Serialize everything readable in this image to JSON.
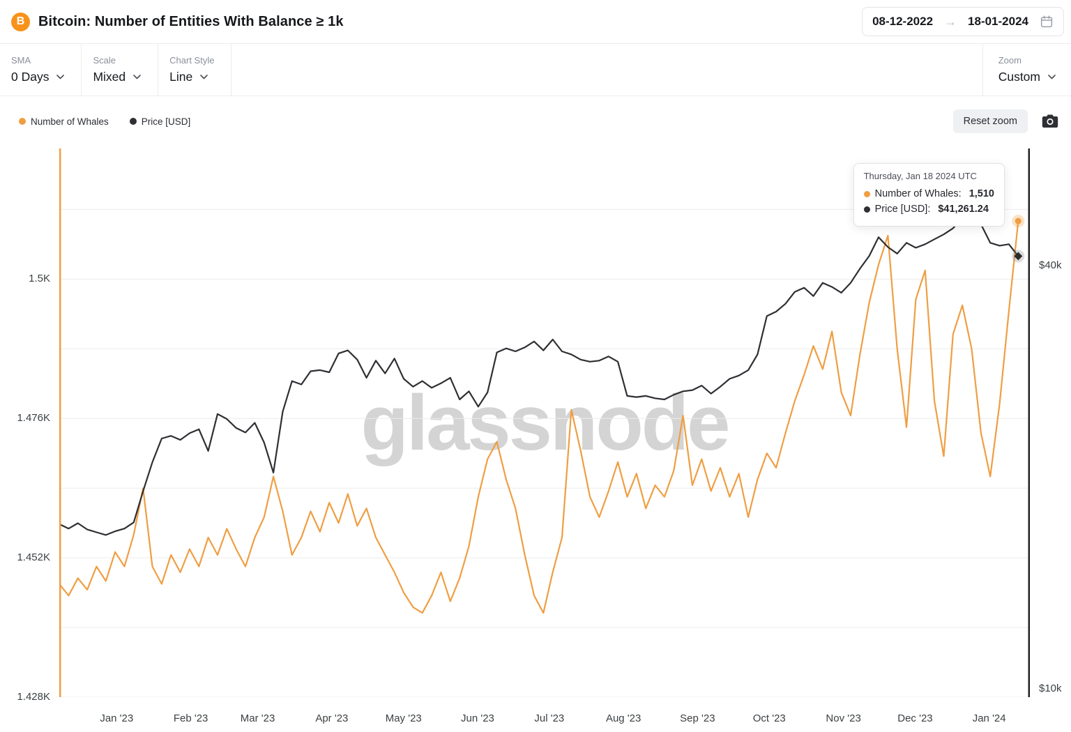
{
  "header": {
    "title": "Bitcoin: Number of Entities With Balance ≥ 1k",
    "date_range": {
      "start": "08-12-2022",
      "end": "18-01-2024"
    }
  },
  "toolbar": {
    "sma": {
      "label": "SMA",
      "value": "0 Days"
    },
    "scale": {
      "label": "Scale",
      "value": "Mixed"
    },
    "chart_style": {
      "label": "Chart Style",
      "value": "Line"
    },
    "zoom": {
      "label": "Zoom",
      "value": "Custom"
    }
  },
  "legend": [
    {
      "label": "Number of Whales",
      "color": "#ef9e42"
    },
    {
      "label": "Price [USD]",
      "color": "#2e2f33"
    }
  ],
  "actions": {
    "reset_zoom": "Reset zoom"
  },
  "tooltip": {
    "date": "Thursday, Jan 18 2024 UTC",
    "rows": [
      {
        "label": "Number of Whales:",
        "value": "1,510",
        "color": "#ef9e42"
      },
      {
        "label": "Price [USD]:",
        "value": "$41,261.24",
        "color": "#2e2f33"
      }
    ]
  },
  "watermark": "glassnode",
  "chart_data": {
    "type": "line",
    "title": "Bitcoin: Number of Entities With Balance ≥ 1k",
    "x_range": [
      "08-12-2022",
      "18-01-2024"
    ],
    "x_span": 0.988,
    "grid": true,
    "left_axis": {
      "scale": "linear",
      "unit": "K entities",
      "min": 1.428,
      "max": 1.5225,
      "grid_values": [
        1.428,
        1.44,
        1.452,
        1.464,
        1.476,
        1.488,
        1.5,
        1.512
      ],
      "ticks": [
        {
          "label": "1.5K",
          "value": 1.5
        },
        {
          "label": "1.476K",
          "value": 1.476
        },
        {
          "label": "1.452K",
          "value": 1.452
        },
        {
          "label": "1.428K",
          "value": 1.428
        }
      ]
    },
    "right_axis": {
      "scale": "log",
      "unit": "USD (thousands)",
      "min": 9.73,
      "max": 58.7,
      "ticks": [
        {
          "label": "$40k",
          "value": 40
        },
        {
          "label": "$10k",
          "value": 10
        }
      ]
    },
    "x_ticks": [
      {
        "label": "Jan '23",
        "f": 0.0591
      },
      {
        "label": "Feb '23",
        "f": 0.1355
      },
      {
        "label": "Mar '23",
        "f": 0.2044
      },
      {
        "label": "Apr '23",
        "f": 0.2808
      },
      {
        "label": "May '23",
        "f": 0.3547
      },
      {
        "label": "Jun '23",
        "f": 0.431
      },
      {
        "label": "Jul '23",
        "f": 0.5049
      },
      {
        "label": "Aug '23",
        "f": 0.5813
      },
      {
        "label": "Sep '23",
        "f": 0.6576
      },
      {
        "label": "Oct '23",
        "f": 0.7315
      },
      {
        "label": "Nov '23",
        "f": 0.8079
      },
      {
        "label": "Dec '23",
        "f": 0.8818
      },
      {
        "label": "Jan '24",
        "f": 0.9581
      }
    ],
    "series": [
      {
        "name": "Number of Whales",
        "axis": "left",
        "color": "#ef9e42",
        "marker": "circle",
        "last_value_label": "1,510",
        "values": [
          1.4475,
          1.4455,
          1.4485,
          1.4465,
          1.4505,
          1.448,
          1.453,
          1.4505,
          1.456,
          1.464,
          1.4505,
          1.4475,
          1.4525,
          1.4495,
          1.4535,
          1.4505,
          1.4555,
          1.4525,
          1.457,
          1.4535,
          1.4505,
          1.4555,
          1.459,
          1.466,
          1.46,
          1.4525,
          1.4555,
          1.46,
          1.4565,
          1.4615,
          1.458,
          1.463,
          1.4575,
          1.4605,
          1.4555,
          1.4525,
          1.4495,
          1.446,
          1.4435,
          1.4425,
          1.4455,
          1.4495,
          1.4445,
          1.4485,
          1.454,
          1.4625,
          1.469,
          1.472,
          1.4655,
          1.4605,
          1.4525,
          1.4455,
          1.4425,
          1.4495,
          1.4555,
          1.4775,
          1.4705,
          1.4625,
          1.459,
          1.4635,
          1.4685,
          1.4625,
          1.4665,
          1.4605,
          1.4645,
          1.4625,
          1.467,
          1.4765,
          1.4645,
          1.469,
          1.4635,
          1.4675,
          1.4625,
          1.4665,
          1.459,
          1.4655,
          1.47,
          1.4675,
          1.4735,
          1.479,
          1.4835,
          1.4885,
          1.4845,
          1.491,
          1.4805,
          1.4765,
          1.487,
          1.496,
          1.5025,
          1.5075,
          1.488,
          1.4745,
          1.4965,
          1.5015,
          1.479,
          1.4695,
          1.4905,
          1.4955,
          1.488,
          1.4735,
          1.466,
          1.4785,
          1.4945,
          1.51
        ]
      },
      {
        "name": "Price [USD]",
        "axis": "right",
        "color": "#2e2f33",
        "marker": "diamond",
        "last_value_label": "$41,261.24",
        "values": [
          17.15,
          16.9,
          17.2,
          16.85,
          16.7,
          16.55,
          16.75,
          16.9,
          17.25,
          19.1,
          21.0,
          22.7,
          22.9,
          22.6,
          23.1,
          23.4,
          21.8,
          24.6,
          24.2,
          23.5,
          23.15,
          23.9,
          22.4,
          20.3,
          24.8,
          27.4,
          27.1,
          28.3,
          28.4,
          28.2,
          30.0,
          30.3,
          29.4,
          27.7,
          29.3,
          28.1,
          29.5,
          27.6,
          26.9,
          27.4,
          26.8,
          27.2,
          27.7,
          25.8,
          26.5,
          25.2,
          26.4,
          30.1,
          30.5,
          30.2,
          30.6,
          31.2,
          30.3,
          31.4,
          30.2,
          29.9,
          29.4,
          29.2,
          29.3,
          29.7,
          29.2,
          26.1,
          26.0,
          26.1,
          25.9,
          25.8,
          26.2,
          26.5,
          26.6,
          27.0,
          26.3,
          26.9,
          27.6,
          27.9,
          28.4,
          29.9,
          33.9,
          34.4,
          35.3,
          36.7,
          37.2,
          36.2,
          37.8,
          37.3,
          36.6,
          37.8,
          39.6,
          41.3,
          43.9,
          42.5,
          41.6,
          43.1,
          42.4,
          42.9,
          43.6,
          44.3,
          45.2,
          46.7,
          46.1,
          45.8,
          43.1,
          42.7,
          42.9,
          41.26
        ]
      }
    ]
  }
}
